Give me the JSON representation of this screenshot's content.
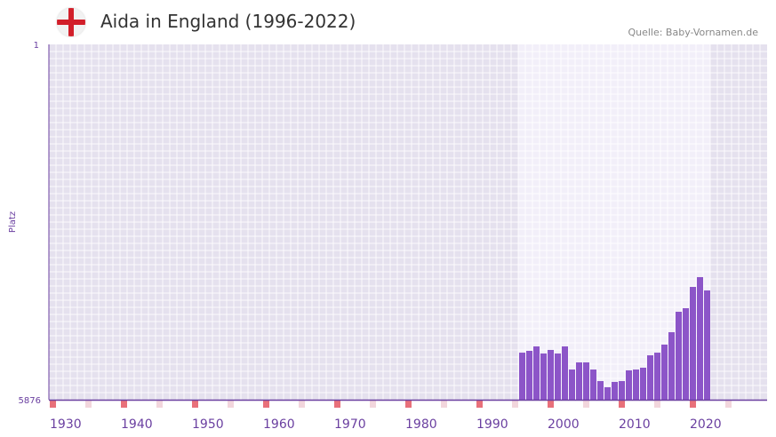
{
  "header": {
    "title": "Aida in England (1996-2022)",
    "source": "Quelle: Baby-Vornamen.de",
    "flag_icon": "england-flag-icon"
  },
  "chart_data": {
    "type": "bar",
    "title": "Aida in England (1996-2022)",
    "xlabel": "",
    "ylabel": "Platz",
    "ylim": [
      1,
      5876
    ],
    "y_inverted": true,
    "ytick_labels": [
      "1",
      "5876"
    ],
    "xlim": [
      1930,
      2030
    ],
    "xtick_labels": [
      "1930",
      "1940",
      "1950",
      "1960",
      "1970",
      "1980",
      "1990",
      "2000",
      "2010",
      "2020"
    ],
    "x": [
      1996,
      1997,
      1998,
      1999,
      2000,
      2001,
      2002,
      2003,
      2004,
      2005,
      2006,
      2007,
      2008,
      2009,
      2010,
      2011,
      2012,
      2013,
      2014,
      2015,
      2016,
      2017,
      2018,
      2019,
      2020,
      2021,
      2022
    ],
    "values": [
      5098,
      5068,
      4995,
      5112,
      5053,
      5112,
      4995,
      5377,
      5259,
      5259,
      5377,
      5568,
      5670,
      5582,
      5568,
      5391,
      5377,
      5347,
      5142,
      5098,
      4965,
      4760,
      4422,
      4363,
      4011,
      3849,
      4069
    ],
    "grid": true,
    "colors": {
      "bar": "#8c55c8",
      "axis": "#6a3fa0",
      "decade_marker": "#e8707a",
      "half_marker": "#f2d6dc",
      "bg": "#e5e1ee",
      "bg_highlight": "#f2eff9"
    }
  }
}
